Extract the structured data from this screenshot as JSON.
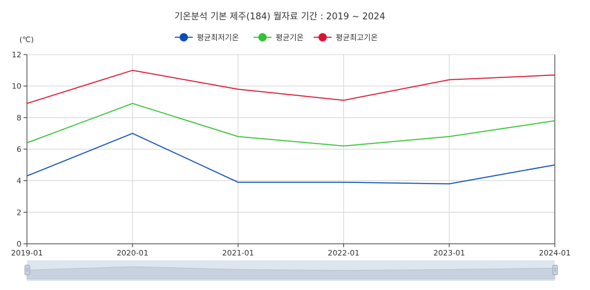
{
  "chart_data": {
    "type": "line",
    "title": "기온분석 기본 제주(184) 월자료 기간 : 2019 ~ 2024",
    "ylabel": "(℃)",
    "xlabel": "",
    "categories": [
      "2019-01",
      "2020-01",
      "2021-01",
      "2022-01",
      "2023-01",
      "2024-01"
    ],
    "ylim": [
      0,
      12
    ],
    "yticks": [
      "0",
      "2",
      "4",
      "6",
      "8",
      "10",
      "12"
    ],
    "grid": true,
    "legend_position": "top-center",
    "series": [
      {
        "name": "평균최저기온",
        "color": "#0a4fb5",
        "values": [
          4.3,
          7.0,
          3.9,
          3.9,
          3.8,
          5.0
        ]
      },
      {
        "name": "평균기온",
        "color": "#33c233",
        "values": [
          6.4,
          8.9,
          6.8,
          6.2,
          6.8,
          7.8
        ]
      },
      {
        "name": "평균최고기온",
        "color": "#dd1133",
        "values": [
          8.9,
          11.0,
          9.8,
          9.1,
          10.4,
          10.7
        ]
      }
    ]
  }
}
